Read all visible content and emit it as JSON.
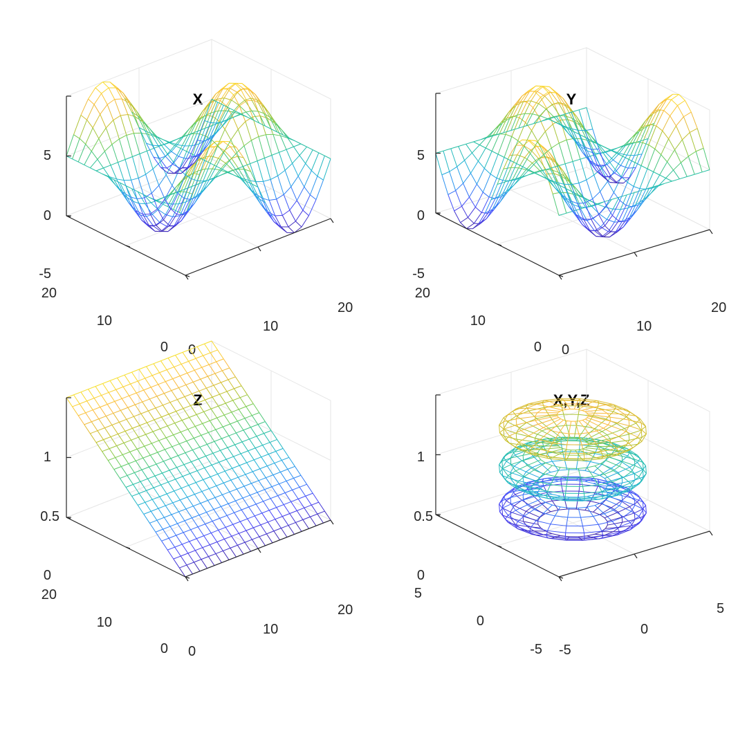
{
  "figure": {
    "background": "#ffffff"
  },
  "colormap": [
    "#3e26a8",
    "#4743f8",
    "#2e87f7",
    "#20b2d8",
    "#24bfa4",
    "#6ccd5a",
    "#c1c12b",
    "#fbb93f",
    "#f9e22c"
  ],
  "chart_data": [
    {
      "type": "surface-mesh",
      "title": "X",
      "function": "z = 5*sin(x*pi/10)*cos(y*pi/10)",
      "grid_points": 21,
      "x_range": [
        0,
        20
      ],
      "y_range": [
        0,
        20
      ],
      "z_range": [
        -5,
        5
      ],
      "x_ticks": [
        "0",
        "10",
        "20"
      ],
      "y_ticks": [
        "0",
        "10",
        "20"
      ],
      "z_ticks": [
        "-5",
        "0",
        "5"
      ],
      "grid": true
    },
    {
      "type": "surface-mesh",
      "title": "Y",
      "function": "z = 5*cos(x*pi/10)*sin(y*pi/10)",
      "grid_points": 21,
      "x_range": [
        0,
        20
      ],
      "y_range": [
        0,
        20
      ],
      "z_range": [
        -5,
        5
      ],
      "x_ticks": [
        "0",
        "10",
        "20"
      ],
      "y_ticks": [
        "0",
        "10",
        "20"
      ],
      "z_ticks": [
        "-5",
        "0",
        "5"
      ],
      "grid": true
    },
    {
      "type": "surface-mesh",
      "title": "Z",
      "function": "z = y/20 (plane)",
      "grid_points": 21,
      "x_range": [
        0,
        20
      ],
      "y_range": [
        0,
        20
      ],
      "z_range": [
        0,
        1
      ],
      "x_ticks": [
        "0",
        "10",
        "20"
      ],
      "y_ticks": [
        "0",
        "10",
        "20"
      ],
      "z_ticks": [
        "0",
        "0.5",
        "1"
      ],
      "grid": true
    },
    {
      "type": "surface-mesh",
      "title": "X,Y,Z",
      "function": "three stacked surfaces of revolution",
      "x_range": [
        -5,
        5
      ],
      "y_range": [
        -5,
        5
      ],
      "z_range": [
        0,
        1
      ],
      "x_ticks": [
        "-5",
        "0",
        "5"
      ],
      "y_ticks": [
        "-5",
        "0",
        "5"
      ],
      "z_ticks": [
        "0",
        "0.5",
        "1"
      ],
      "grid": true
    }
  ]
}
